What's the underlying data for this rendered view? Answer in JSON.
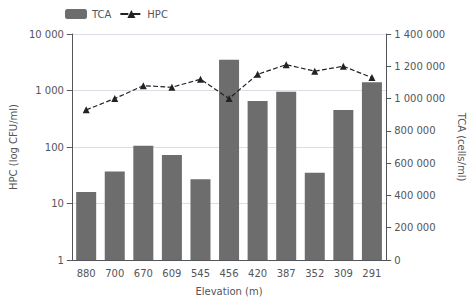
{
  "chart_data": {
    "type": "bar",
    "xlabel": "Elevation (m)",
    "ylabel": "HPC (log CFU/ml)",
    "y2label": "TCA (cells/ml)",
    "categories": [
      "880",
      "700",
      "670",
      "609",
      "545",
      "456",
      "420",
      "387",
      "352",
      "309",
      "291"
    ],
    "series": [
      {
        "name": "TCA",
        "type": "bar",
        "color": "#6d6d6d",
        "values": [
          16,
          37,
          105,
          72,
          27,
          3500,
          650,
          950,
          35,
          450,
          1400
        ]
      },
      {
        "name": "HPC",
        "type": "line",
        "axis": "y2",
        "color": "#222222",
        "marker": "triangle",
        "line_style": "dashed",
        "values": [
          930000,
          1000000,
          1080000,
          1070000,
          1120000,
          1000000,
          1150000,
          1210000,
          1170000,
          1200000,
          1130000
        ]
      }
    ],
    "log": "y",
    "ylim": [
      1,
      10000
    ],
    "yticks": [
      1,
      10,
      100,
      {
        "value": 1000,
        "label": "1 000"
      },
      {
        "value": 10000,
        "label": "10 000"
      }
    ],
    "y2lim": [
      0,
      1400000
    ],
    "y2ticks": [
      0,
      {
        "value": 200000,
        "label": "200 000"
      },
      {
        "value": 400000,
        "label": "400 000"
      },
      {
        "value": 600000,
        "label": "600 000"
      },
      {
        "value": 800000,
        "label": "800 000"
      },
      {
        "value": 1000000,
        "label": "1 000 000"
      },
      {
        "value": 1200000,
        "label": "1 200 000"
      },
      {
        "value": 1400000,
        "label": "1 400 000"
      }
    ],
    "grid": true,
    "legend": "upper left"
  }
}
